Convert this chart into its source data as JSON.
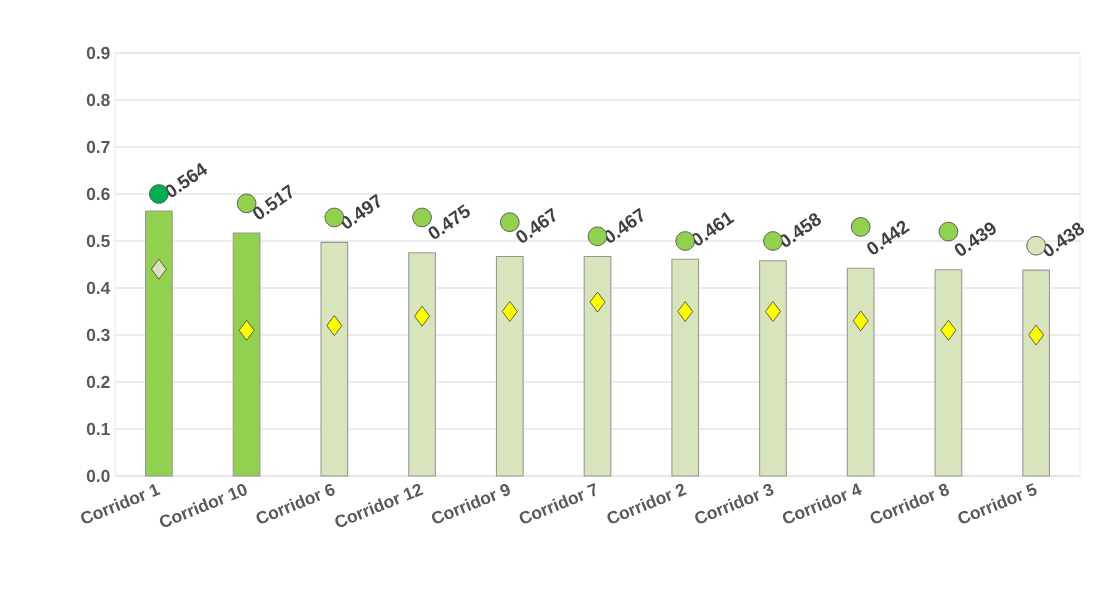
{
  "chart_data": {
    "type": "bar",
    "categories": [
      "Corridor 1",
      "Corridor 10",
      "Corridor 6",
      "Corridor 12",
      "Corridor 9",
      "Corridor 7",
      "Corridor 2",
      "Corridor 3",
      "Corridor 4",
      "Corridor 8",
      "Corridor 5"
    ],
    "series": [
      {
        "colors": [
          "#92d050",
          "#92d050",
          "#d8e4bc",
          "#d8e4bc",
          "#d8e4bc",
          "#d8e4bc",
          "#d8e4bc",
          "#d8e4bc",
          "#d8e4bc",
          "#d8e4bc",
          "#d8e4bc"
        ],
        "values": [
          0.564,
          0.517,
          0.497,
          0.475,
          0.467,
          0.467,
          0.461,
          0.458,
          0.442,
          0.439,
          0.438
        ],
        "value_labels": [
          "0.564",
          "0.517",
          "0.497",
          "0.475",
          "0.467",
          "0.467",
          "0.461",
          "0.458",
          "0.442",
          "0.439",
          "0.438"
        ]
      },
      {
        "type": "scatter",
        "marker": "circle",
        "colors": [
          "#00b050",
          "#92d050",
          "#92d050",
          "#92d050",
          "#92d050",
          "#92d050",
          "#92d050",
          "#92d050",
          "#92d050",
          "#92d050",
          "#d8e4bc"
        ],
        "values": [
          0.6,
          0.58,
          0.55,
          0.55,
          0.54,
          0.51,
          0.5,
          0.5,
          0.53,
          0.52,
          0.49
        ]
      },
      {
        "type": "scatter",
        "marker": "diamond",
        "colors": [
          "#d8e4bc",
          "#ffff00",
          "#ffff00",
          "#ffff00",
          "#ffff00",
          "#ffff00",
          "#ffff00",
          "#ffff00",
          "#ffff00",
          "#ffff00",
          "#ffff00"
        ],
        "values": [
          0.44,
          0.31,
          0.32,
          0.34,
          0.35,
          0.37,
          0.35,
          0.35,
          0.33,
          0.31,
          0.3
        ]
      }
    ],
    "ylim": [
      0,
      0.9
    ],
    "yticks": [
      {
        "value": 0,
        "label": "0.0"
      },
      0.1,
      0.2,
      0.3,
      0.4,
      0.5,
      0.6,
      0.7,
      0.8,
      0.9
    ],
    "grid": "y"
  }
}
